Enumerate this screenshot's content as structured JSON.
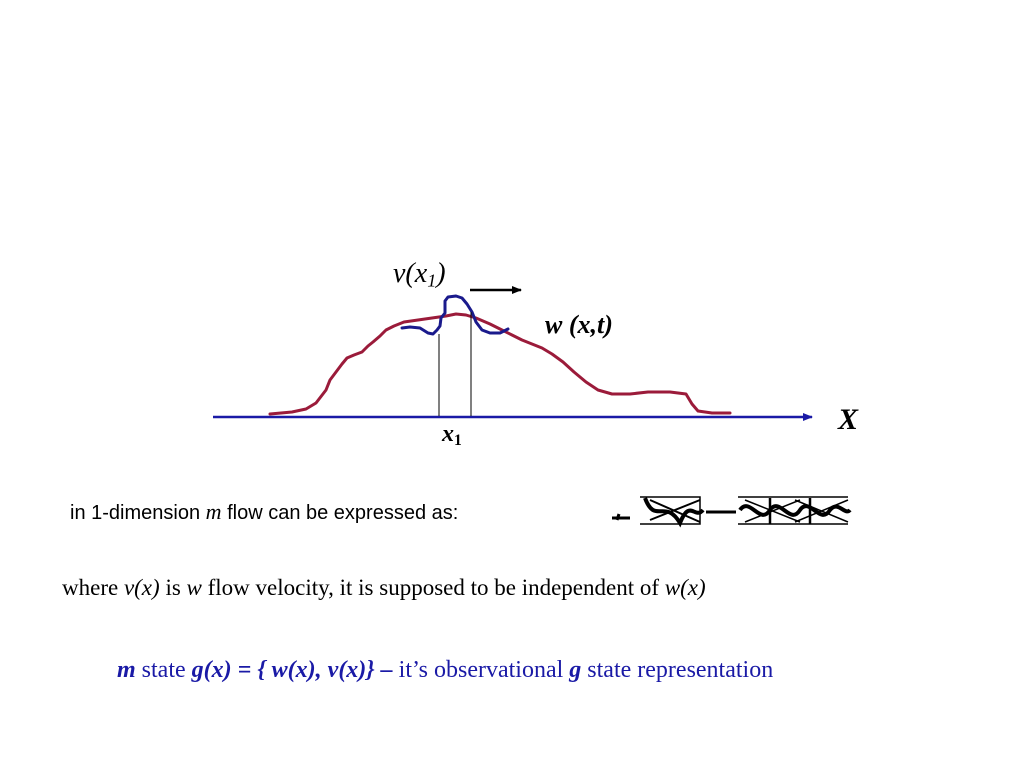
{
  "diagram": {
    "velocity_label": {
      "prefix": "v(x",
      "sub": "1",
      "suffix": ")"
    },
    "wave_label": "w (x,t)",
    "axis_label": "X",
    "point_label": {
      "main": "x",
      "sub": "1"
    }
  },
  "text": {
    "line1": {
      "part1": "in 1-dimension ",
      "m": "m",
      "part2": " flow can be expressed as:"
    },
    "line2": {
      "t1": "where ",
      "vx": "v(x)",
      "t2": "  is  ",
      "w": "w",
      "t3": " flow velocity,  it is supposed to be independent of ",
      "wx": "w(x)"
    },
    "line3": {
      "m": "m",
      "t1": "  state ",
      "g": "g(x) = { w(x), v(x)} –",
      "t2": "  it’s observational  ",
      "g2": "g",
      "t3": " state representation"
    }
  },
  "colors": {
    "axis": "#1a1aa6",
    "wave": "#9b1b3a",
    "pulse": "#1a1a8c",
    "line3_text": "#1a1aa6"
  }
}
